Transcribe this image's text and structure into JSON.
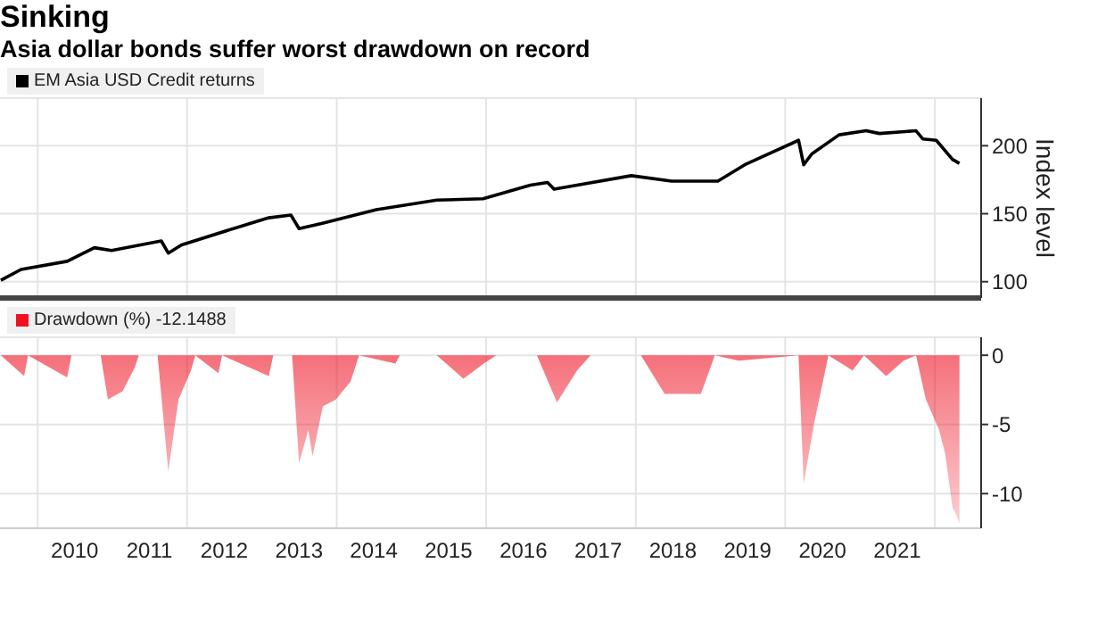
{
  "chart_data": [
    {
      "type": "line",
      "title": "Sinking",
      "subtitle": "Asia dollar bonds suffer worst drawdown on record",
      "ylabel": "Index level",
      "legend": "top left",
      "grid": true,
      "tick_labels": "y",
      "xlim": [
        "2009-07-01",
        "2022-08-15"
      ],
      "xticks": [
        {
          "value": "2010-01-01",
          "label": null
        },
        {
          "value": "2012-01-01",
          "label": null
        },
        {
          "value": "2014-01-01",
          "label": null
        },
        {
          "value": "2016-01-01",
          "label": null
        },
        {
          "value": "2018-01-01",
          "label": null
        },
        {
          "value": "2020-01-01",
          "label": null
        },
        {
          "value": "2022-01-01",
          "label": null
        }
      ],
      "ylim": [
        88,
        235
      ],
      "yticks": [
        100,
        150,
        200
      ],
      "series": [
        {
          "name": "EM Asia USD Credit returns",
          "color": "#000000",
          "x": [
            "2009-07-05",
            "2009-10-12",
            "2010-05-25",
            "2010-10-05",
            "2010-12-28",
            "2011-08-28",
            "2011-10-01",
            "2011-12-05",
            "2012-07-23",
            "2013-02-03",
            "2013-05-22",
            "2013-07-01",
            "2013-10-23",
            "2014-07-13",
            "2015-05-05",
            "2015-12-17",
            "2016-08-04",
            "2016-10-27",
            "2016-11-28",
            "2017-03-20",
            "2017-12-10",
            "2018-06-25",
            "2019-02-06",
            "2019-06-17",
            "2019-10-27",
            "2020-03-06",
            "2020-03-31",
            "2020-05-10",
            "2020-09-20",
            "2021-01-30",
            "2021-04-05",
            "2021-10-01",
            "2021-11-03",
            "2022-01-08",
            "2022-03-28",
            "2022-05-01"
          ],
          "values": [
            101,
            109,
            115,
            125,
            123,
            130,
            121,
            127,
            138,
            147,
            149,
            139,
            143,
            153,
            160,
            161,
            171,
            173,
            168,
            171,
            178,
            174,
            174,
            186,
            195,
            204,
            186,
            194,
            208,
            211,
            209,
            211,
            205,
            204,
            190,
            187
          ]
        }
      ]
    },
    {
      "type": "area",
      "legend": "top left",
      "grid": true,
      "xlim": [
        "2009-07-01",
        "2022-08-15"
      ],
      "xticks": [
        {
          "value": "2010-01-01",
          "label": null
        },
        {
          "value": "2010-07-01",
          "label": "2010"
        },
        {
          "value": "2011-07-01",
          "label": "2011"
        },
        {
          "value": "2012-01-01",
          "label": null
        },
        {
          "value": "2012-07-01",
          "label": "2012"
        },
        {
          "value": "2013-07-01",
          "label": "2013"
        },
        {
          "value": "2014-01-01",
          "label": null
        },
        {
          "value": "2014-07-01",
          "label": "2014"
        },
        {
          "value": "2015-07-01",
          "label": "2015"
        },
        {
          "value": "2016-01-01",
          "label": null
        },
        {
          "value": "2016-07-01",
          "label": "2016"
        },
        {
          "value": "2017-07-01",
          "label": "2017"
        },
        {
          "value": "2018-01-01",
          "label": null
        },
        {
          "value": "2018-07-01",
          "label": "2018"
        },
        {
          "value": "2019-07-01",
          "label": "2019"
        },
        {
          "value": "2020-01-01",
          "label": null
        },
        {
          "value": "2020-07-01",
          "label": "2020"
        },
        {
          "value": "2021-07-01",
          "label": "2021"
        },
        {
          "value": "2022-01-01",
          "label": null
        }
      ],
      "ylim": [
        -12.5,
        1.3
      ],
      "yticks": [
        0,
        -5,
        -10
      ],
      "series": [
        {
          "name": "Drawdown (%) -12.1488",
          "color": "#ee1122",
          "x": [
            "2009-07-05",
            "2009-10-27",
            "2009-11-15",
            "2010-05-25",
            "2010-06-15",
            "2010-11-05",
            "2010-12-10",
            "2011-02-20",
            "2011-04-20",
            "2011-05-10",
            "2011-08-10",
            "2011-10-01",
            "2011-11-20",
            "2012-01-20",
            "2012-02-10",
            "2012-06-02",
            "2012-06-20",
            "2013-02-03",
            "2013-02-25",
            "2013-05-28",
            "2013-07-01",
            "2013-08-15",
            "2013-09-05",
            "2013-10-25",
            "2013-12-28",
            "2014-03-10",
            "2014-04-20",
            "2014-10-15",
            "2014-11-05",
            "2015-05-05",
            "2015-09-12",
            "2015-12-20",
            "2016-02-20",
            "2016-09-05",
            "2016-12-12",
            "2017-03-20",
            "2017-05-25",
            "2018-01-26",
            "2018-05-22",
            "2018-11-15",
            "2019-01-22",
            "2019-05-20",
            "2020-03-06",
            "2020-03-31",
            "2020-05-20",
            "2020-07-30",
            "2020-11-25",
            "2021-01-20",
            "2021-05-08",
            "2021-08-01",
            "2021-10-01",
            "2021-11-18",
            "2022-01-22",
            "2022-02-20",
            "2022-03-28",
            "2022-04-12",
            "2022-05-01"
          ],
          "values": [
            0,
            -1.5,
            0,
            -1.6,
            0,
            0,
            -3.2,
            -2.6,
            -0.9,
            0,
            0,
            -8.4,
            -3.2,
            -1.1,
            0,
            -1.3,
            0,
            -1.5,
            0,
            0,
            -7.8,
            -5.4,
            -7.3,
            -3.7,
            -3.2,
            -1.9,
            0,
            -0.6,
            0,
            0,
            -1.7,
            -0.6,
            0,
            0,
            -3.4,
            -1.1,
            0,
            0,
            -2.8,
            -2.8,
            0,
            -0.4,
            0,
            -9.3,
            -5.0,
            0,
            -1.1,
            0,
            -1.5,
            -0.4,
            0,
            -3.2,
            -5.4,
            -7.1,
            -11.0,
            -11.4,
            -12.1488
          ]
        }
      ]
    }
  ]
}
